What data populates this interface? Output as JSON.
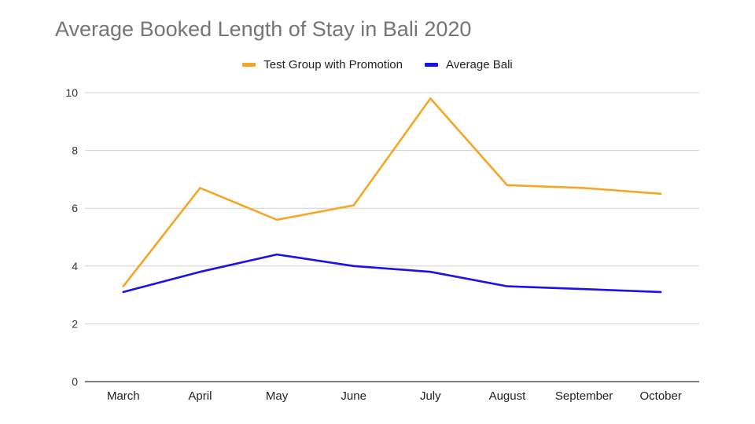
{
  "chart_data": {
    "type": "line",
    "title": "Average Booked Length of Stay in Bali 2020",
    "xlabel": "",
    "ylabel": "",
    "categories": [
      "March",
      "April",
      "May",
      "June",
      "July",
      "August",
      "September",
      "October"
    ],
    "series": [
      {
        "name": "Test Group with Promotion",
        "color": "#f5a623",
        "values": [
          3.3,
          6.7,
          5.6,
          6.1,
          9.8,
          6.8,
          6.7,
          6.5
        ]
      },
      {
        "name": "Average Bali",
        "color": "#1a12e6",
        "values": [
          3.1,
          3.8,
          4.4,
          4.0,
          3.8,
          3.3,
          3.2,
          3.1
        ]
      }
    ],
    "ylim": [
      0,
      10
    ],
    "yticks": [
      0,
      2,
      4,
      6,
      8,
      10
    ],
    "grid": true,
    "legend_position": "top-center"
  }
}
